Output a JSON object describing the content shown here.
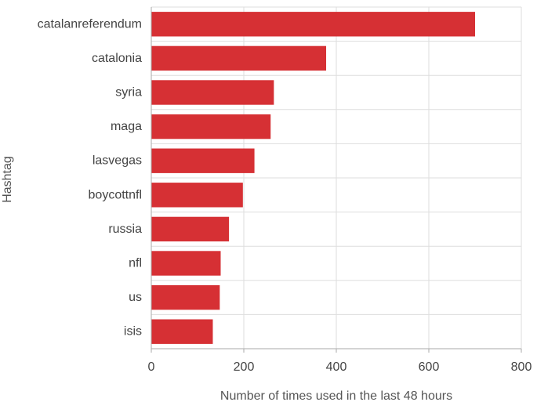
{
  "chart_data": {
    "type": "bar",
    "orientation": "horizontal",
    "title": "",
    "xlabel": "Number of times used in the last 48 hours",
    "ylabel": "Hashtag",
    "categories": [
      "catalanreferendum",
      "catalonia",
      "syria",
      "maga",
      "lasvegas",
      "boycottnfl",
      "russia",
      "nfl",
      "us",
      "isis"
    ],
    "values": [
      700,
      378,
      265,
      258,
      223,
      198,
      168,
      150,
      148,
      133
    ],
    "xlim": [
      0,
      800
    ],
    "xticks": [
      0,
      200,
      400,
      600,
      800
    ],
    "grid": true,
    "legend": "none",
    "colors": {
      "bar": "#d63034",
      "grid": "#dddddd",
      "axis": "#aaaaaa"
    }
  }
}
